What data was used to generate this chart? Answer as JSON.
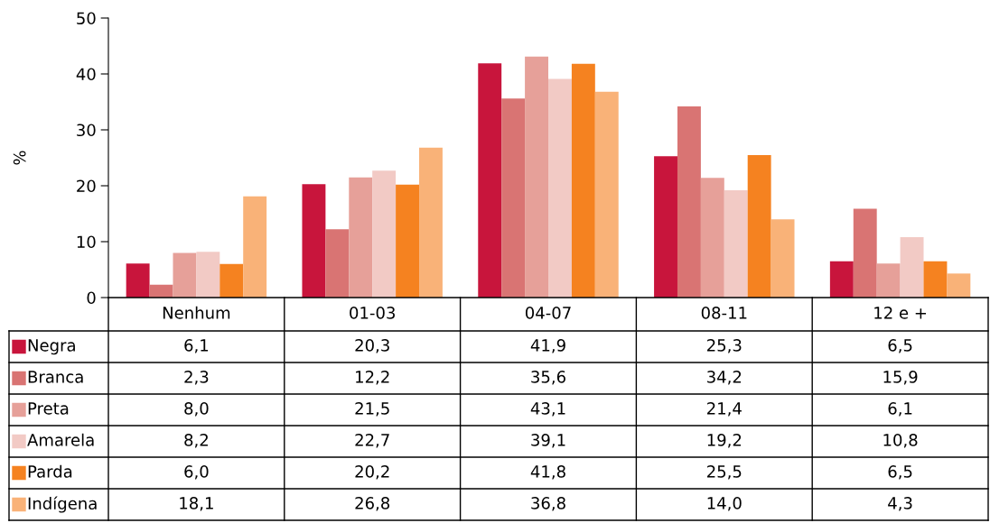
{
  "chart_data": {
    "type": "bar",
    "ylabel": "%",
    "categories": [
      "Nenhum",
      "01-03",
      "04-07",
      "08-11",
      "12 e +"
    ],
    "series": [
      {
        "name": "Negra",
        "color": "#c8153c",
        "values": [
          6.1,
          20.3,
          41.9,
          25.3,
          6.5
        ],
        "value_labels": [
          "6,1",
          "20,3",
          "41,9",
          "25,3",
          "6,5"
        ]
      },
      {
        "name": "Branca",
        "color": "#d97473",
        "values": [
          2.3,
          12.2,
          35.6,
          34.2,
          15.9
        ],
        "value_labels": [
          "2,3",
          "12,2",
          "35,6",
          "34,2",
          "15,9"
        ]
      },
      {
        "name": "Preta",
        "color": "#e6a099",
        "values": [
          8.0,
          21.5,
          43.1,
          21.4,
          6.1
        ],
        "value_labels": [
          "8,0",
          "21,5",
          "43,1",
          "21,4",
          "6,1"
        ]
      },
      {
        "name": "Amarela",
        "color": "#f2cac5",
        "values": [
          8.2,
          22.7,
          39.1,
          19.2,
          10.8
        ],
        "value_labels": [
          "8,2",
          "22,7",
          "39,1",
          "19,2",
          "10,8"
        ]
      },
      {
        "name": "Parda",
        "color": "#f58220",
        "values": [
          6.0,
          20.2,
          41.8,
          25.5,
          6.5
        ],
        "value_labels": [
          "6,0",
          "20,2",
          "41,8",
          "25,5",
          "6,5"
        ]
      },
      {
        "name": "Indígena",
        "color": "#f9b278",
        "values": [
          18.1,
          26.8,
          36.8,
          14.0,
          4.3
        ],
        "value_labels": [
          "18,1",
          "26,8",
          "36,8",
          "14,0",
          "4,3"
        ]
      }
    ],
    "ylim": [
      0,
      50
    ],
    "yticks": [
      0,
      10,
      20,
      30,
      40,
      50
    ],
    "grid": false,
    "legend": "bottom"
  }
}
